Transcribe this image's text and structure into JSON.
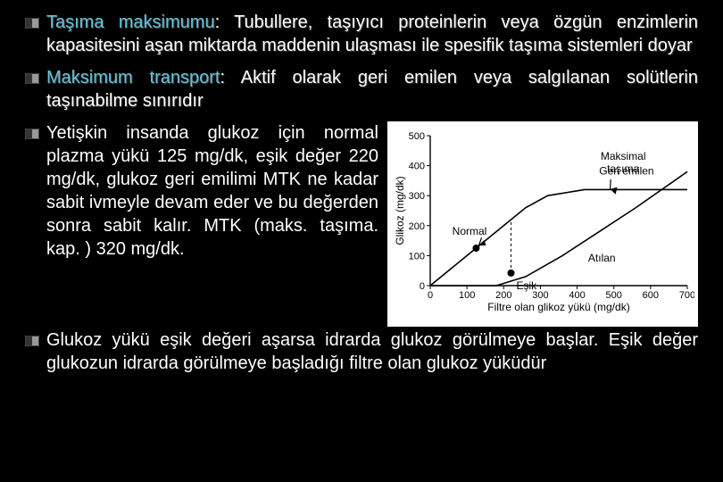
{
  "bullets": {
    "b1_term": "Taşıma maksimumu",
    "b1_rest": ": Tubullere, taşıyıcı proteinlerin veya özgün enzimlerin kapasitesini aşan miktarda maddenin ulaşması ile spesifik taşıma sistemleri doyar",
    "b2_term": "Maksimum transport",
    "b2_rest": ": Aktif olarak geri emilen veya salgılanan solütlerin taşınabilme sınırıdır"
  },
  "para3": "Yetişkin insanda glukoz için normal plazma yükü 125 mg/dk, eşik değer 220 mg/dk, glukoz geri emilimi MTK ne kadar sabit ivmeyle devam eder ve bu değerden sonra sabit kalır. MTK (maks. taşıma. kap. ) 320 mg/dk.",
  "para4": "Glukoz yükü eşik değeri aşarsa idrarda glukoz görülmeye başlar. Eşik değer glukozun idrarda görülmeye başladığı filtre olan glukoz yüküdür",
  "chart": {
    "type": "line",
    "background_color": "#ffffff",
    "axis_color": "#000000",
    "series_color": "#000000",
    "title_y": "Glikoz (mg/dk)",
    "title_x": "Filtre olan glikoz yükü (mg/dk)",
    "x_ticks": [
      0,
      100,
      200,
      300,
      400,
      500,
      600,
      700
    ],
    "y_ticks": [
      0,
      100,
      200,
      300,
      400,
      500
    ],
    "xlim": [
      0,
      700
    ],
    "ylim": [
      0,
      500
    ],
    "labels": {
      "geri_emilen": "Geri emilen",
      "normal": "Normal",
      "esik": "Eşik",
      "atilan": "Atılan",
      "maksimal": "Maksimal taşıma"
    },
    "series": {
      "reabsorbed": [
        [
          0,
          0
        ],
        [
          100,
          100
        ],
        [
          200,
          200
        ],
        [
          260,
          260
        ],
        [
          320,
          300
        ],
        [
          420,
          320
        ],
        [
          700,
          320
        ]
      ],
      "excreted": [
        [
          0,
          0
        ],
        [
          180,
          0
        ],
        [
          260,
          30
        ],
        [
          360,
          100
        ],
        [
          460,
          180
        ],
        [
          560,
          260
        ],
        [
          700,
          380
        ]
      ]
    },
    "points": {
      "normal": [
        125,
        125
      ],
      "esik": [
        220,
        42
      ]
    },
    "arrow_max": {
      "from": [
        540,
        360
      ],
      "to": [
        490,
        322
      ]
    },
    "font_size_axis": 11,
    "font_size_label": 12,
    "line_width": 1.6
  },
  "colors": {
    "bg": "#000000",
    "text": "#ffffff",
    "term": "#66c2d9",
    "bullet_border": "#808080",
    "bullet_fill_left": "#333333",
    "bullet_fill_right": "#999999"
  }
}
